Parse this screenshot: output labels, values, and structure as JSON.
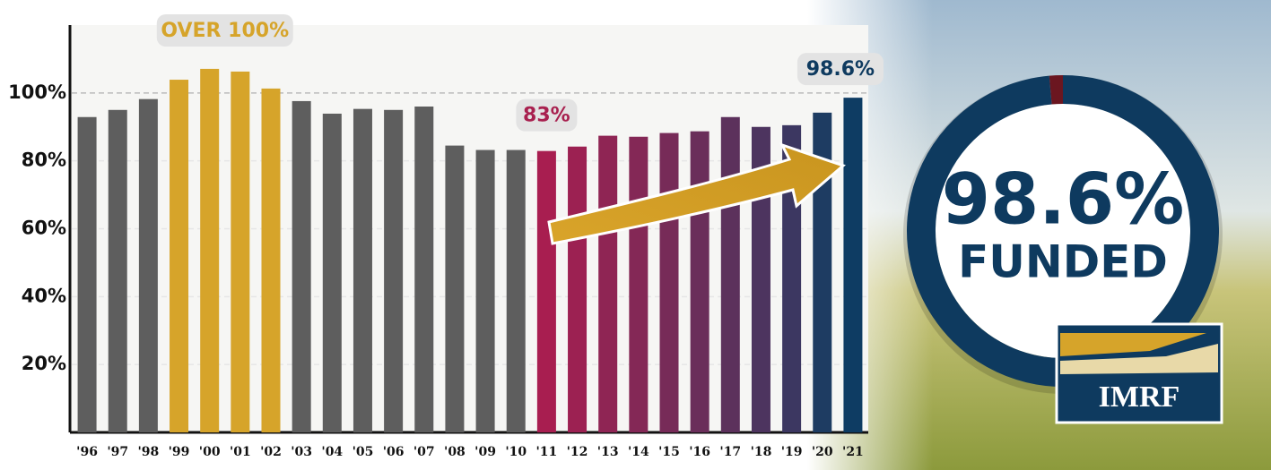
{
  "chart_data": {
    "type": "bar",
    "categories": [
      "'96",
      "'97",
      "'98",
      "'99",
      "'00",
      "'01",
      "'02",
      "'03",
      "'04",
      "'05",
      "'06",
      "'07",
      "'08",
      "'09",
      "'10",
      "'11",
      "'12",
      "'13",
      "'14",
      "'15",
      "'16",
      "'17",
      "'18",
      "'19",
      "'20",
      "'21"
    ],
    "values": [
      92.9,
      95,
      98.2,
      103.9,
      107.1,
      106.3,
      101.3,
      97.6,
      93.9,
      95.3,
      95,
      96,
      84.5,
      83.2,
      83.2,
      82.9,
      84.2,
      87.4,
      87.1,
      88.2,
      88.7,
      92.9,
      90,
      90.5,
      94.2,
      98.6
    ],
    "value_labels": [
      null,
      null,
      null,
      null,
      null,
      null,
      null,
      null,
      null,
      null,
      null,
      null,
      null,
      null,
      null,
      "83%",
      null,
      null,
      null,
      null,
      null,
      null,
      null,
      null,
      null,
      "98.6%"
    ],
    "colors": [
      "#5e5e5e",
      "#5e5e5e",
      "#5e5e5e",
      "#d6a42a",
      "#d6a42a",
      "#d6a42a",
      "#d6a42a",
      "#5e5e5e",
      "#5e5e5e",
      "#5e5e5e",
      "#5e5e5e",
      "#5e5e5e",
      "#5e5e5e",
      "#5e5e5e",
      "#5e5e5e",
      "#a81e50",
      "#9c2152",
      "#8f2554",
      "#842856",
      "#772b58",
      "#6a2e5a",
      "#5c315c",
      "#4d345f",
      "#3c3761",
      "#1e3c62",
      "#0e3c63"
    ],
    "value_label_colors": {
      "'11": "#a8204f",
      "'21": "#0e3a5f"
    },
    "annotation": {
      "text": "OVER 100%",
      "color": "#d6a42a"
    },
    "ylim": [
      0,
      120
    ],
    "yticks": [
      {
        "value": 20,
        "label": "20%"
      },
      {
        "value": 40,
        "label": "40%"
      },
      {
        "value": 60,
        "label": "60%"
      },
      {
        "value": 80,
        "label": "80%"
      },
      {
        "value": 100,
        "label": "100%"
      }
    ],
    "grid": true,
    "donut": {
      "value": 98.6,
      "label": "98.6%",
      "caption": "FUNDED",
      "color": "#0e3a5f",
      "rest_color": "#6b1620"
    }
  },
  "logo": {
    "text": "IMRF"
  }
}
